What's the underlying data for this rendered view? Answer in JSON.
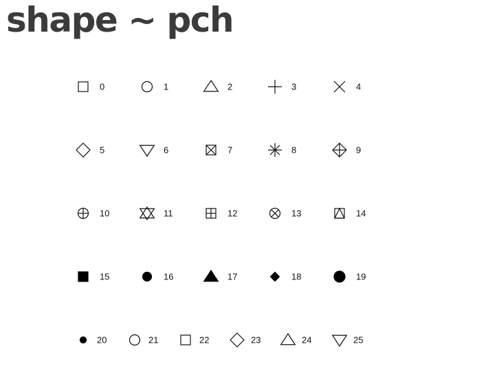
{
  "title": "shape ~ pch",
  "chart_data": {
    "type": "table",
    "title": "shape ~ pch",
    "rows": [
      [
        {
          "code": 0,
          "label": "0",
          "shape": "square-open"
        },
        {
          "code": 1,
          "label": "1",
          "shape": "circle-open"
        },
        {
          "code": 2,
          "label": "2",
          "shape": "triangle-up-open"
        },
        {
          "code": 3,
          "label": "3",
          "shape": "plus"
        },
        {
          "code": 4,
          "label": "4",
          "shape": "cross"
        }
      ],
      [
        {
          "code": 5,
          "label": "5",
          "shape": "diamond-open"
        },
        {
          "code": 6,
          "label": "6",
          "shape": "triangle-down-open"
        },
        {
          "code": 7,
          "label": "7",
          "shape": "square-cross"
        },
        {
          "code": 8,
          "label": "8",
          "shape": "asterisk"
        },
        {
          "code": 9,
          "label": "9",
          "shape": "diamond-plus"
        }
      ],
      [
        {
          "code": 10,
          "label": "10",
          "shape": "circle-plus"
        },
        {
          "code": 11,
          "label": "11",
          "shape": "star-of-david"
        },
        {
          "code": 12,
          "label": "12",
          "shape": "square-plus"
        },
        {
          "code": 13,
          "label": "13",
          "shape": "circle-cross"
        },
        {
          "code": 14,
          "label": "14",
          "shape": "square-triangle"
        }
      ],
      [
        {
          "code": 15,
          "label": "15",
          "shape": "square-filled"
        },
        {
          "code": 16,
          "label": "16",
          "shape": "circle-filled"
        },
        {
          "code": 17,
          "label": "17",
          "shape": "triangle-up-filled"
        },
        {
          "code": 18,
          "label": "18",
          "shape": "diamond-filled-small"
        },
        {
          "code": 19,
          "label": "19",
          "shape": "circle-filled-large"
        }
      ],
      [
        {
          "code": 20,
          "label": "20",
          "shape": "dot-small"
        },
        {
          "code": 21,
          "label": "21",
          "shape": "circle-open"
        },
        {
          "code": 22,
          "label": "22",
          "shape": "square-open"
        },
        {
          "code": 23,
          "label": "23",
          "shape": "diamond-open"
        },
        {
          "code": 24,
          "label": "24",
          "shape": "triangle-up-open"
        },
        {
          "code": 25,
          "label": "25",
          "shape": "triangle-down-open"
        }
      ]
    ],
    "colors": {
      "title": "#3b3b3b",
      "stroke": "#111111",
      "fill": "#000000",
      "background": "#ffffff"
    }
  }
}
